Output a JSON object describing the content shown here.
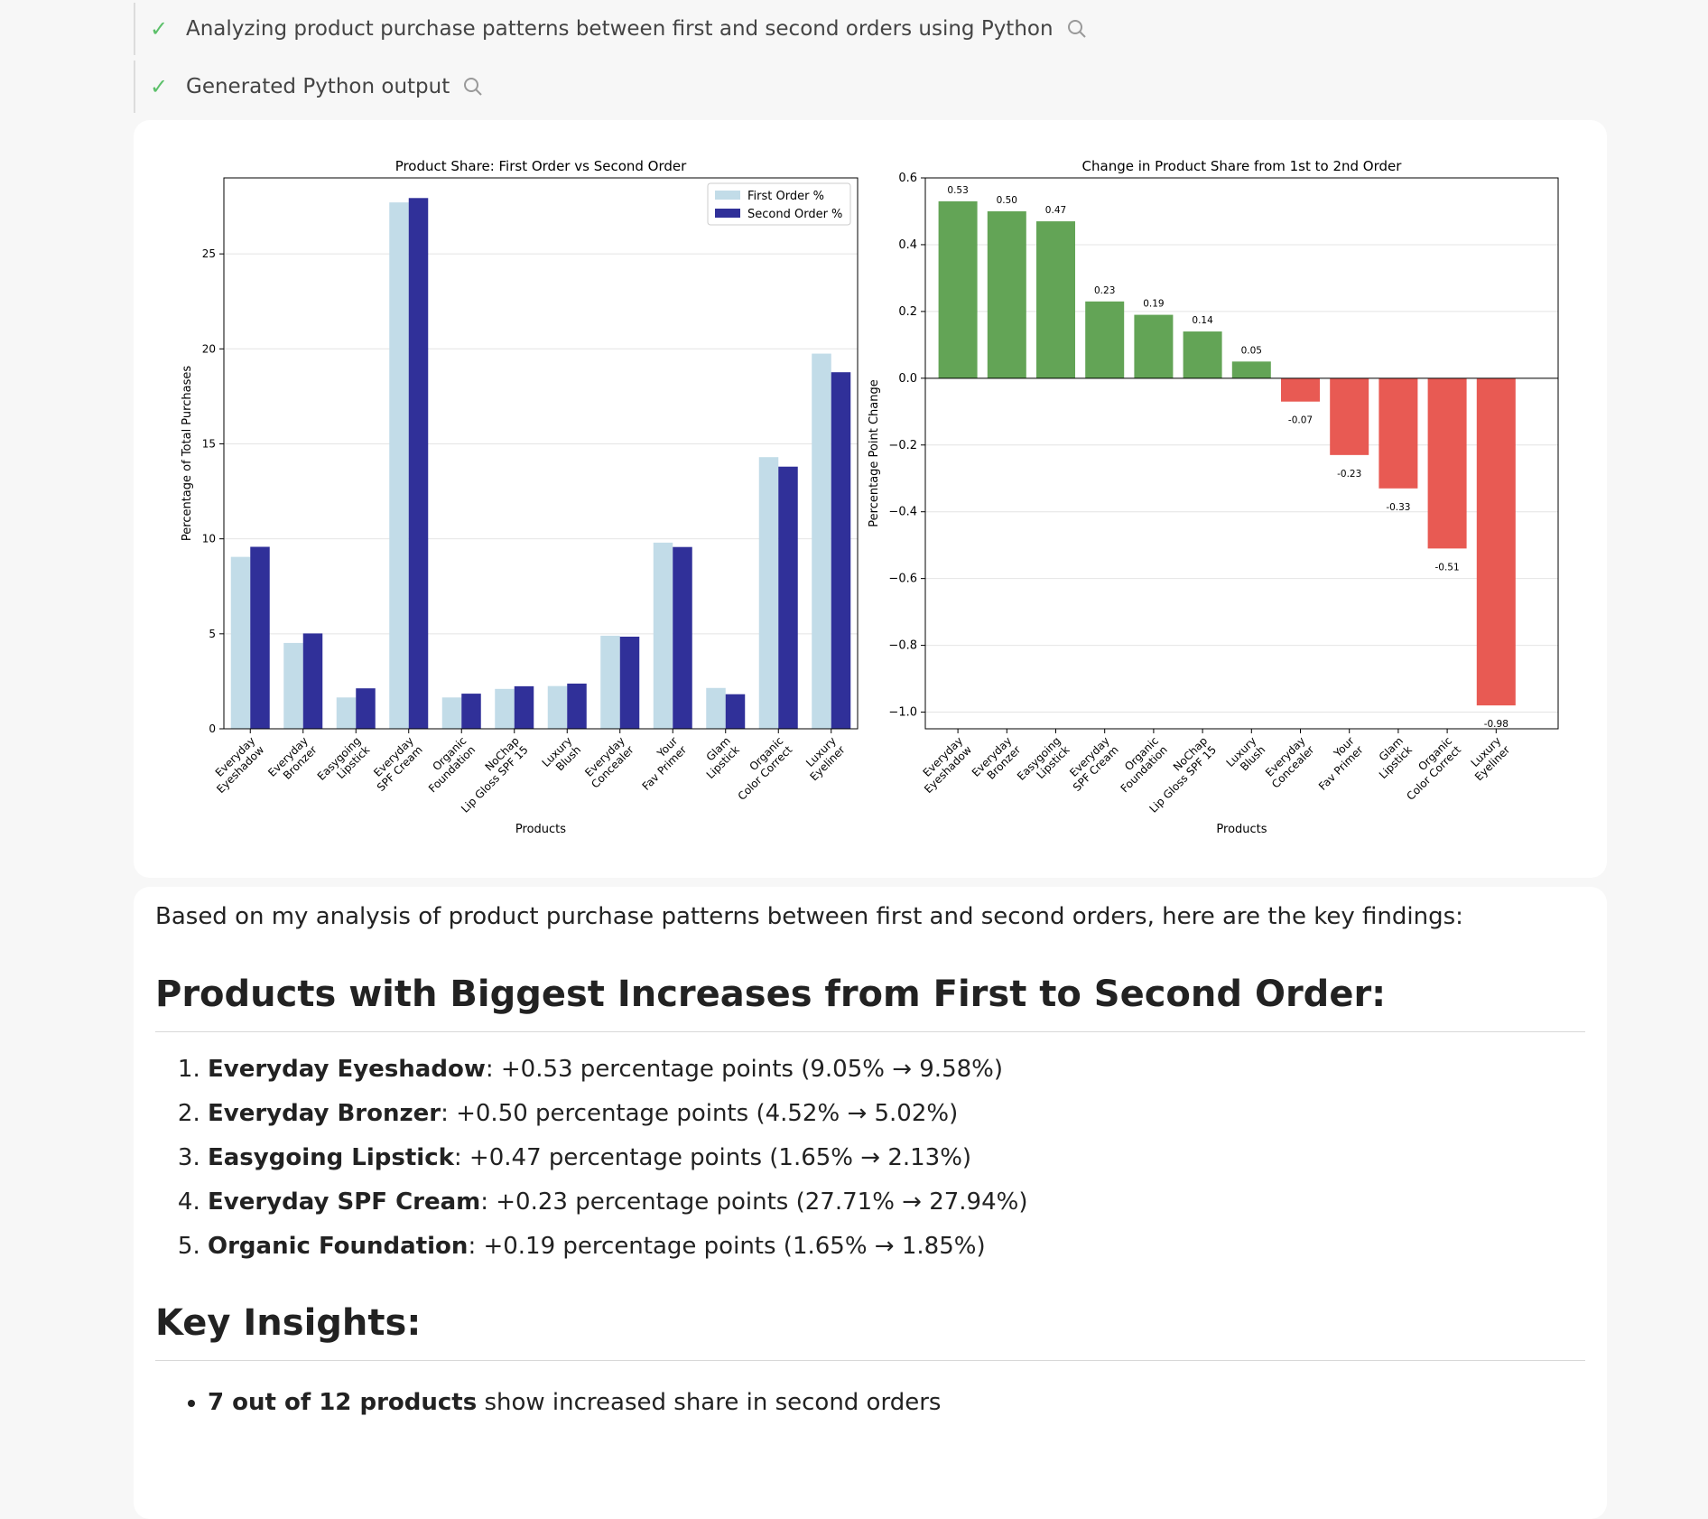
{
  "steps": [
    {
      "label": "Analyzing product purchase patterns between first and second orders using Python",
      "icon": "search-icon"
    },
    {
      "label": "Generated Python output",
      "icon": "search-icon"
    }
  ],
  "colors": {
    "first": "#c2dce8",
    "second": "#303099",
    "positive": "#63a456",
    "negative": "#e85a53",
    "check": "#5cc06a"
  },
  "chart_data": [
    {
      "type": "bar",
      "title": "Product Share: First Order vs Second Order",
      "xlabel": "Products",
      "ylabel": "Percentage of Total Purchases",
      "ylim": [
        0,
        29
      ],
      "yticks": [
        0,
        5,
        10,
        15,
        20,
        25
      ],
      "grid": true,
      "legend": "top-right",
      "categories": [
        "Everyday\nEyeshadow",
        "Everyday\nBronzer",
        "Easygoing\nLipstick",
        "Everyday\nSPF Cream",
        "Organic\nFoundation",
        "NoChap\nLip Gloss SPF 15",
        "Luxury\nBlush",
        "Everyday\nConcealer",
        "Your\nFav Primer",
        "Glam\nLipstick",
        "Organic\nColor Correct",
        "Luxury\nEyeliner"
      ],
      "series": [
        {
          "name": "First Order %",
          "values": [
            9.05,
            4.52,
            1.65,
            27.71,
            1.65,
            2.1,
            2.25,
            4.9,
            9.8,
            2.15,
            14.3,
            19.75
          ]
        },
        {
          "name": "Second Order %",
          "values": [
            9.58,
            5.02,
            2.13,
            27.94,
            1.85,
            2.24,
            2.38,
            4.85,
            9.57,
            1.82,
            13.8,
            18.77
          ]
        }
      ]
    },
    {
      "type": "bar",
      "title": "Change in Product Share from 1st to 2nd Order",
      "xlabel": "Products",
      "ylabel": "Percentage Point Change",
      "ylim": [
        -1.05,
        0.6
      ],
      "yticks": [
        "0.6",
        "0.4",
        "0.2",
        "0.0",
        "−0.2",
        "−0.4",
        "−0.6",
        "−0.8",
        "−1.0"
      ],
      "grid": true,
      "categories": [
        "Everyday\nEyeshadow",
        "Everyday\nBronzer",
        "Easygoing\nLipstick",
        "Everyday\nSPF Cream",
        "Organic\nFoundation",
        "NoChap\nLip Gloss SPF 15",
        "Luxury\nBlush",
        "Everyday\nConcealer",
        "Your\nFav Primer",
        "Glam\nLipstick",
        "Organic\nColor Correct",
        "Luxury\nEyeliner"
      ],
      "values": [
        0.53,
        0.5,
        0.47,
        0.23,
        0.19,
        0.14,
        0.05,
        -0.07,
        -0.23,
        -0.33,
        -0.51,
        -0.98
      ],
      "labels": [
        "0.53",
        "0.50",
        "0.47",
        "0.23",
        "0.19",
        "0.14",
        "0.05",
        "-0.07",
        "-0.23",
        "-0.33",
        "-0.51",
        "-0.98"
      ]
    }
  ],
  "response": {
    "intro": "Based on my analysis of product purchase patterns between first and second orders, here are the key findings:",
    "heading_increases": "Products with Biggest Increases from First to Second Order:",
    "increases": [
      {
        "name": "Everyday Eyeshadow",
        "detail": ": +0.53 percentage points (9.05% → 9.58%)"
      },
      {
        "name": "Everyday Bronzer",
        "detail": ": +0.50 percentage points (4.52% → 5.02%)"
      },
      {
        "name": "Easygoing Lipstick",
        "detail": ": +0.47 percentage points (1.65% → 2.13%)"
      },
      {
        "name": "Everyday SPF Cream",
        "detail": ": +0.23 percentage points (27.71% → 27.94%)"
      },
      {
        "name": "Organic Foundation",
        "detail": ": +0.19 percentage points (1.65% → 1.85%)"
      }
    ],
    "heading_insights": "Key Insights:",
    "insights": [
      {
        "bold": "7 out of 12 products",
        "text": " show increased share in second orders"
      }
    ]
  }
}
